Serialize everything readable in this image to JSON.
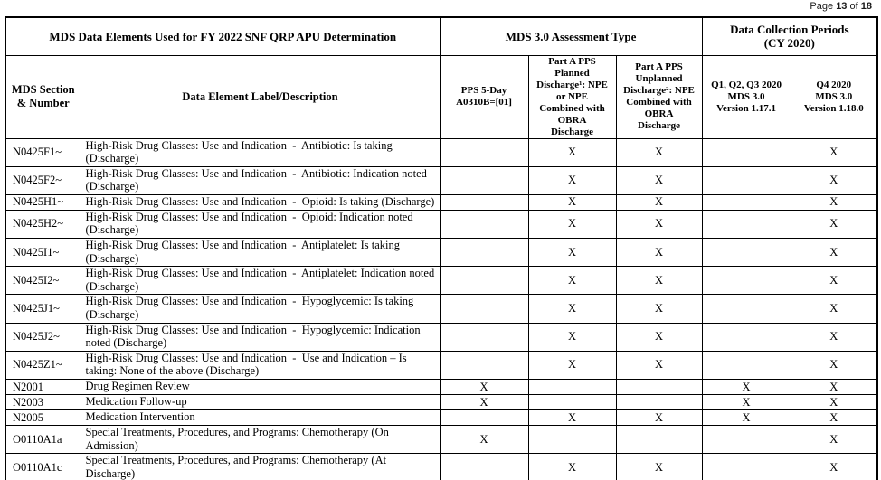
{
  "page_header": {
    "label": "Page",
    "page": "13",
    "of_label": "of",
    "total": "18"
  },
  "table": {
    "group_headers": [
      {
        "label": "MDS Data Elements Used for FY 2022 SNF QRP APU Determination"
      },
      {
        "label": "MDS 3.0 Assessment Type"
      },
      {
        "label": "Data Collection Periods\n(CY 2020)"
      }
    ],
    "columns": [
      {
        "label": "MDS Section\n& Number"
      },
      {
        "label": "Data Element Label/Description"
      },
      {
        "label": "PPS 5-Day\nA0310B=[01]"
      },
      {
        "label": "Part A PPS\nPlanned\nDischarge¹: NPE\nor NPE\nCombined with\nOBRA\nDischarge"
      },
      {
        "label": "Part A PPS\nUnplanned\nDischarge²: NPE\nCombined with\nOBRA\nDischarge"
      },
      {
        "label": "Q1, Q2, Q3 2020\nMDS 3.0\nVersion 1.17.1"
      },
      {
        "label": "Q4 2020\nMDS 3.0\nVersion 1.18.0"
      }
    ],
    "rows": [
      {
        "section": "N0425F1~",
        "description": "High-Risk Drug Classes: Use and Indication  -  Antibiotic: Is taking (Discharge)",
        "marks": [
          "",
          "X",
          "X",
          "",
          "X"
        ]
      },
      {
        "section": "N0425F2~",
        "description": "High-Risk Drug Classes: Use and Indication  -  Antibiotic: Indication noted (Discharge)",
        "marks": [
          "",
          "X",
          "X",
          "",
          "X"
        ]
      },
      {
        "section": "N0425H1~",
        "description": "High-Risk Drug Classes: Use and Indication  -  Opioid: Is taking (Discharge)",
        "marks": [
          "",
          "X",
          "X",
          "",
          "X"
        ]
      },
      {
        "section": "N0425H2~",
        "description": "High-Risk Drug Classes: Use and Indication  -  Opioid: Indication noted (Discharge)",
        "marks": [
          "",
          "X",
          "X",
          "",
          "X"
        ]
      },
      {
        "section": "N0425I1~",
        "description": "High-Risk Drug Classes: Use and Indication  -  Antiplatelet: Is taking (Discharge)",
        "marks": [
          "",
          "X",
          "X",
          "",
          "X"
        ]
      },
      {
        "section": "N0425I2~",
        "description": "High-Risk Drug Classes: Use and Indication  -  Antiplatelet: Indication noted (Discharge)",
        "marks": [
          "",
          "X",
          "X",
          "",
          "X"
        ]
      },
      {
        "section": "N0425J1~",
        "description": "High-Risk Drug Classes: Use and Indication  -  Hypoglycemic: Is taking (Discharge)",
        "marks": [
          "",
          "X",
          "X",
          "",
          "X"
        ]
      },
      {
        "section": "N0425J2~",
        "description": "High-Risk Drug Classes: Use and Indication  -  Hypoglycemic: Indication noted (Discharge)",
        "marks": [
          "",
          "X",
          "X",
          "",
          "X"
        ]
      },
      {
        "section": "N0425Z1~",
        "description": "High-Risk Drug Classes: Use and Indication  -  Use and Indication – Is taking: None of the above (Discharge)",
        "marks": [
          "",
          "X",
          "X",
          "",
          "X"
        ]
      },
      {
        "section": "N2001",
        "description": "Drug Regimen Review",
        "marks": [
          "X",
          "",
          "",
          "X",
          "X"
        ]
      },
      {
        "section": "N2003",
        "description": "Medication Follow-up",
        "marks": [
          "X",
          "",
          "",
          "X",
          "X"
        ]
      },
      {
        "section": "N2005",
        "description": "Medication Intervention",
        "marks": [
          "",
          "X",
          "X",
          "X",
          "X"
        ]
      },
      {
        "section": "O0110A1a",
        "description": "Special Treatments, Procedures, and Programs: Chemotherapy (On Admission)",
        "marks": [
          "X",
          "",
          "",
          "",
          "X"
        ]
      },
      {
        "section": "O0110A1c",
        "description": "Special Treatments, Procedures, and Programs: Chemotherapy (At Discharge)",
        "marks": [
          "",
          "X",
          "X",
          "",
          "X"
        ]
      }
    ]
  }
}
